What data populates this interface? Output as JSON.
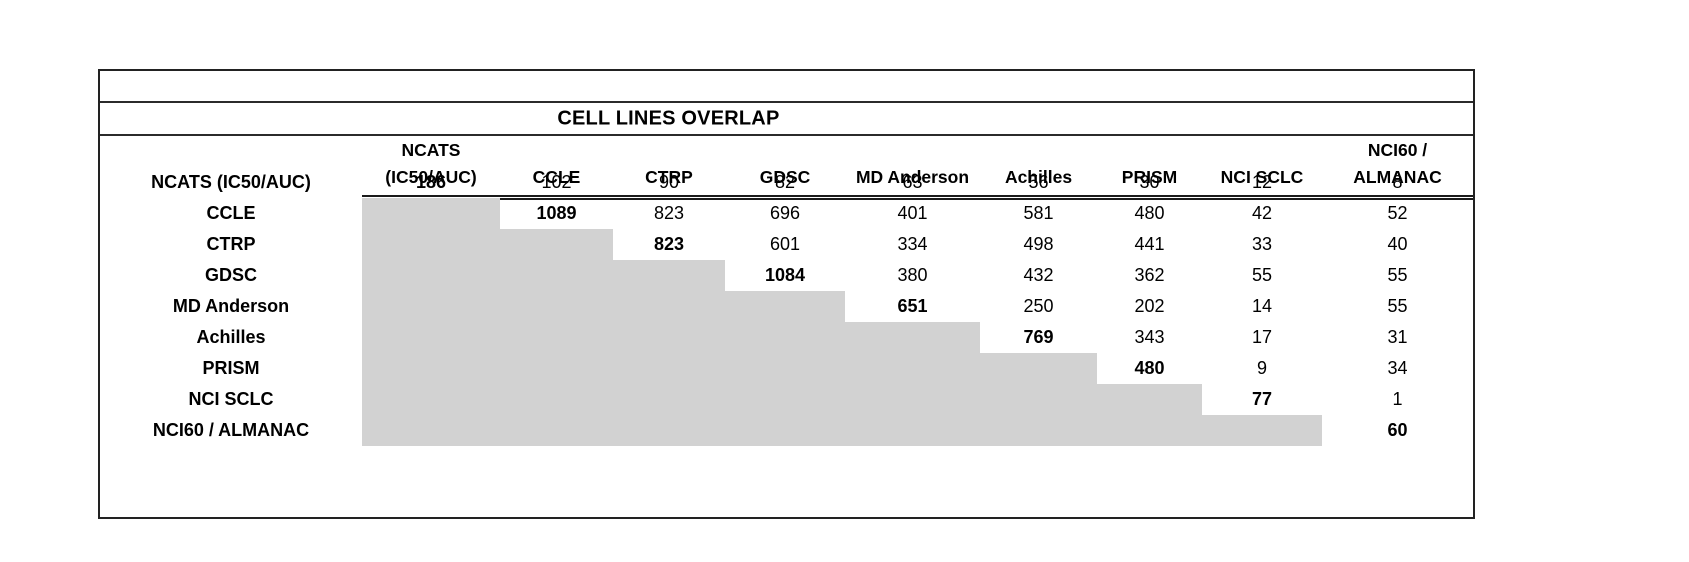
{
  "table": {
    "title": "CELL LINES OVERLAP",
    "column_headers": [
      "NCATS\n(IC50/AUC)",
      "CCLE",
      "CTRP",
      "GDSC",
      "MD Anderson",
      "Achilles",
      "PRISM",
      "NCI SCLC",
      "NCI60 /\nALMANAC"
    ],
    "row_headers": [
      "NCATS (IC50/AUC)",
      "CCLE",
      "CTRP",
      "GDSC",
      "MD Anderson",
      "Achilles",
      "PRISM",
      "NCI SCLC",
      "NCI60 / ALMANAC"
    ]
  },
  "chart_data": {
    "type": "table",
    "title": "CELL LINES OVERLAP",
    "row_labels": [
      "NCATS (IC50/AUC)",
      "CCLE",
      "CTRP",
      "GDSC",
      "MD Anderson",
      "Achilles",
      "PRISM",
      "NCI SCLC",
      "NCI60 / ALMANAC"
    ],
    "col_labels": [
      "NCATS (IC50/AUC)",
      "CCLE",
      "CTRP",
      "GDSC",
      "MD Anderson",
      "Achilles",
      "PRISM",
      "NCI SCLC",
      "NCI60 / ALMANAC"
    ],
    "matrix": [
      [
        186,
        102,
        90,
        82,
        63,
        56,
        30,
        12,
        8
      ],
      [
        null,
        1089,
        823,
        696,
        401,
        581,
        480,
        42,
        52
      ],
      [
        null,
        null,
        823,
        601,
        334,
        498,
        441,
        33,
        40
      ],
      [
        null,
        null,
        null,
        1084,
        380,
        432,
        362,
        55,
        55
      ],
      [
        null,
        null,
        null,
        null,
        651,
        250,
        202,
        14,
        55
      ],
      [
        null,
        null,
        null,
        null,
        null,
        769,
        343,
        17,
        31
      ],
      [
        null,
        null,
        null,
        null,
        null,
        null,
        480,
        9,
        34
      ],
      [
        null,
        null,
        null,
        null,
        null,
        null,
        null,
        77,
        1
      ],
      [
        null,
        null,
        null,
        null,
        null,
        null,
        null,
        null,
        60
      ]
    ],
    "diagonal_values_bold": true,
    "lower_triangle_shaded": true,
    "legend_position": "none",
    "grid": "off"
  },
  "colors": {
    "background": "#ffffff",
    "shading": "#d2d2d2",
    "border": "#222222",
    "text": "#000000"
  }
}
